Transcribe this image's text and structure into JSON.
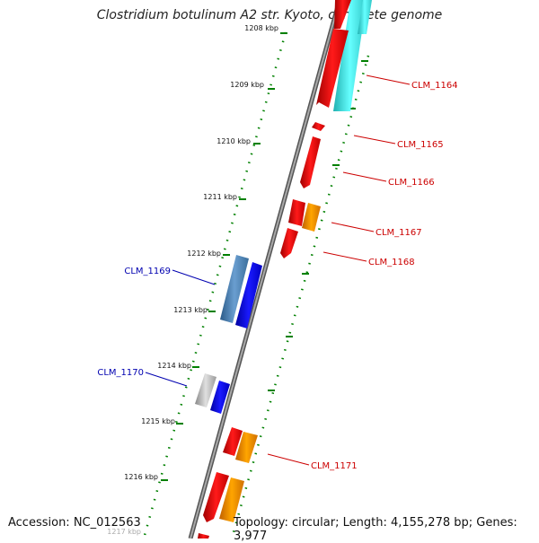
{
  "header": {
    "title": "Clostridium botulinum A2 str. Kyoto, complete genome"
  },
  "footer": {
    "accession": "Accession: NC_012563",
    "summary": "Topology: circular; Length: 4,155,278 bp; Genes: 3,977"
  },
  "scale": {
    "ticks": [
      "1208 kbp",
      "1209 kbp",
      "1210 kbp",
      "1211 kbp",
      "1212 kbp",
      "1213 kbp",
      "1214 kbp",
      "1215 kbp",
      "1216 kbp",
      "1217 kbp"
    ]
  },
  "genes": {
    "forward_labels": [
      "CLM_1164",
      "CLM_1165",
      "CLM_1166",
      "CLM_1167",
      "CLM_1168",
      "CLM_1171"
    ],
    "reverse_labels": [
      "CLM_1169",
      "CLM_1170"
    ]
  },
  "colors": {
    "forward_gene": "#ff0000",
    "forward_label": "#cc0000",
    "reverse_gene": "#0000ff",
    "reverse_label": "#0000b0",
    "rrna_or_other": "#ff9900",
    "cyan_feature": "#33e6e6",
    "steel_feature": "#4682b4",
    "gray_feature": "#aaaaaa",
    "backbone": "#7a7a7a",
    "tick": "#008000"
  }
}
